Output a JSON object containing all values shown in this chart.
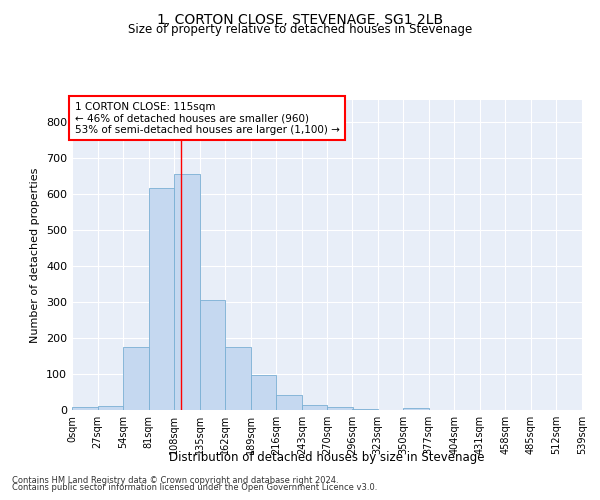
{
  "title": "1, CORTON CLOSE, STEVENAGE, SG1 2LB",
  "subtitle": "Size of property relative to detached houses in Stevenage",
  "xlabel": "Distribution of detached houses by size in Stevenage",
  "ylabel": "Number of detached properties",
  "bar_color": "#c5d8f0",
  "bar_edgecolor": "#7aafd4",
  "background_color": "#e8eef8",
  "grid_color": "#ffffff",
  "annotation_text": "1 CORTON CLOSE: 115sqm\n← 46% of detached houses are smaller (960)\n53% of semi-detached houses are larger (1,100) →",
  "vline_x": 115,
  "vline_color": "#ff0000",
  "footer1": "Contains HM Land Registry data © Crown copyright and database right 2024.",
  "footer2": "Contains public sector information licensed under the Open Government Licence v3.0.",
  "bin_edges": [
    0,
    27,
    54,
    81,
    108,
    135,
    162,
    189,
    216,
    243,
    270,
    296,
    323,
    350,
    377,
    404,
    431,
    458,
    485,
    512,
    539
  ],
  "bar_heights": [
    8,
    12,
    175,
    615,
    655,
    305,
    175,
    97,
    42,
    15,
    8,
    4,
    0,
    5,
    0,
    0,
    0,
    0,
    0,
    0
  ],
  "ylim": [
    0,
    860
  ],
  "yticks": [
    0,
    100,
    200,
    300,
    400,
    500,
    600,
    700,
    800
  ]
}
